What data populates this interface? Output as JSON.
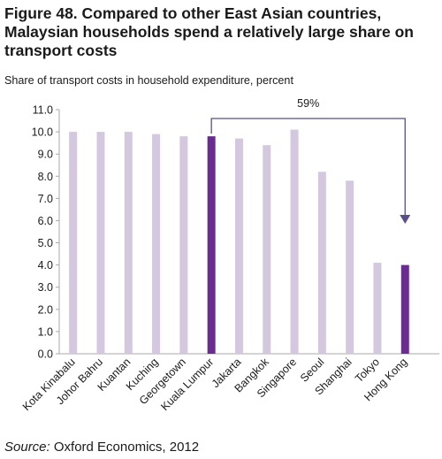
{
  "figure": {
    "title": "Figure 48. Compared to other East Asian countries, Malaysian households spend a relatively large share on transport costs",
    "subtitle": "Share of transport costs in household expenditure, percent",
    "source_label": "Source:",
    "source_text": " Oxford Economics, 2012"
  },
  "chart_data": {
    "type": "bar",
    "title": "",
    "ylabel": "Share of transport costs in household expenditure, percent",
    "xlabel": "",
    "categories": [
      "Kota Kinabalu",
      "Johor Bahru",
      "Kuantan",
      "Kuching",
      "Georgetown",
      "Kuala Lumpur",
      "Jakarta",
      "Bangkok",
      "Singapore",
      "Seoul",
      "Shanghai",
      "Tokyo",
      "Hong Kong"
    ],
    "values": [
      10.0,
      10.0,
      10.0,
      9.9,
      9.8,
      9.8,
      9.7,
      9.4,
      10.1,
      8.2,
      7.8,
      4.1,
      4.0
    ],
    "highlight": [
      "Kuala Lumpur",
      "Hong Kong"
    ],
    "ylim": [
      0,
      11
    ],
    "yticks": [
      "0.0",
      "1.0",
      "2.0",
      "3.0",
      "4.0",
      "5.0",
      "6.0",
      "7.0",
      "8.0",
      "9.0",
      "10.0",
      "11.0"
    ],
    "grid": false,
    "legend": "none",
    "annotation": {
      "text": "59%",
      "from": "Kuala Lumpur",
      "to": "Hong Kong"
    },
    "colors": {
      "bar": "#d4c8de",
      "highlight": "#6a2c8e",
      "axis": "#a8a8a8",
      "arrow": "#5b4d88"
    }
  }
}
